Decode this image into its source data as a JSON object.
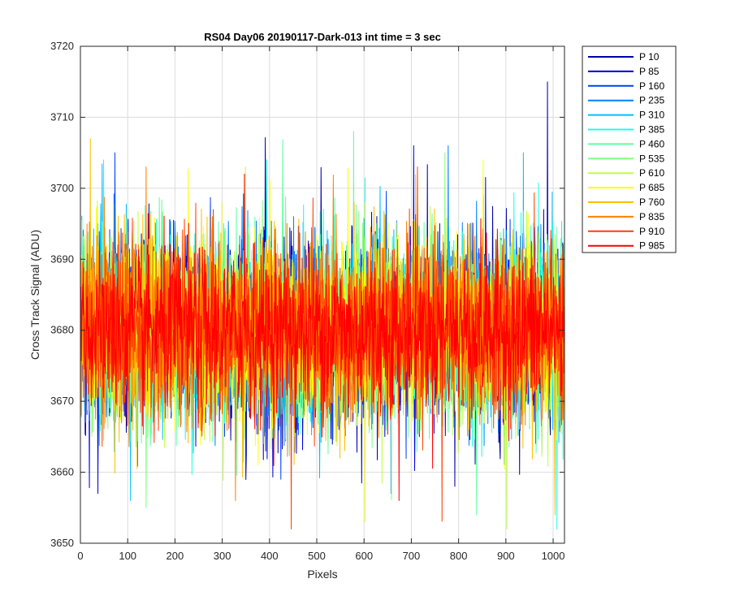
{
  "chart_data": {
    "type": "line",
    "title": "RS04 Day06 20190117-Dark-013 int time = 3 sec",
    "xlabel": "Pixels",
    "ylabel": "Cross Track Signal (ADU)",
    "xlim": [
      0,
      1024
    ],
    "ylim": [
      3650,
      3720
    ],
    "xticks": [
      0,
      100,
      200,
      300,
      400,
      500,
      600,
      700,
      800,
      900,
      1000
    ],
    "yticks": [
      3650,
      3660,
      3670,
      3680,
      3690,
      3700,
      3710,
      3720
    ],
    "grid": true,
    "legend_position": "outside-top-right",
    "n_pixels": 1024,
    "mean_signal": 3680,
    "series": [
      {
        "name": "P 10",
        "color": "#0000aa",
        "min": 3658,
        "max": 3715
      },
      {
        "name": "P 85",
        "color": "#0000dd",
        "min": 3657,
        "max": 3706
      },
      {
        "name": "P 160",
        "color": "#0040ff",
        "min": 3659,
        "max": 3705
      },
      {
        "name": "P 235",
        "color": "#0080ff",
        "min": 3657,
        "max": 3706
      },
      {
        "name": "P 310",
        "color": "#00bfff",
        "min": 3656,
        "max": 3705
      },
      {
        "name": "P 385",
        "color": "#20ffdf",
        "min": 3652,
        "max": 3704
      },
      {
        "name": "P 460",
        "color": "#60ffa0",
        "min": 3654,
        "max": 3708
      },
      {
        "name": "P 535",
        "color": "#80ff80",
        "min": 3655,
        "max": 3705
      },
      {
        "name": "P 610",
        "color": "#bfff40",
        "min": 3652,
        "max": 3703
      },
      {
        "name": "P 685",
        "color": "#ffff00",
        "min": 3653,
        "max": 3704
      },
      {
        "name": "P 760",
        "color": "#ffbf00",
        "min": 3654,
        "max": 3707
      },
      {
        "name": "P 835",
        "color": "#ff8000",
        "min": 3656,
        "max": 3703
      },
      {
        "name": "P 910",
        "color": "#ff4000",
        "min": 3652,
        "max": 3703
      },
      {
        "name": "P 985",
        "color": "#ff0000",
        "min": 3656,
        "max": 3702
      }
    ]
  }
}
